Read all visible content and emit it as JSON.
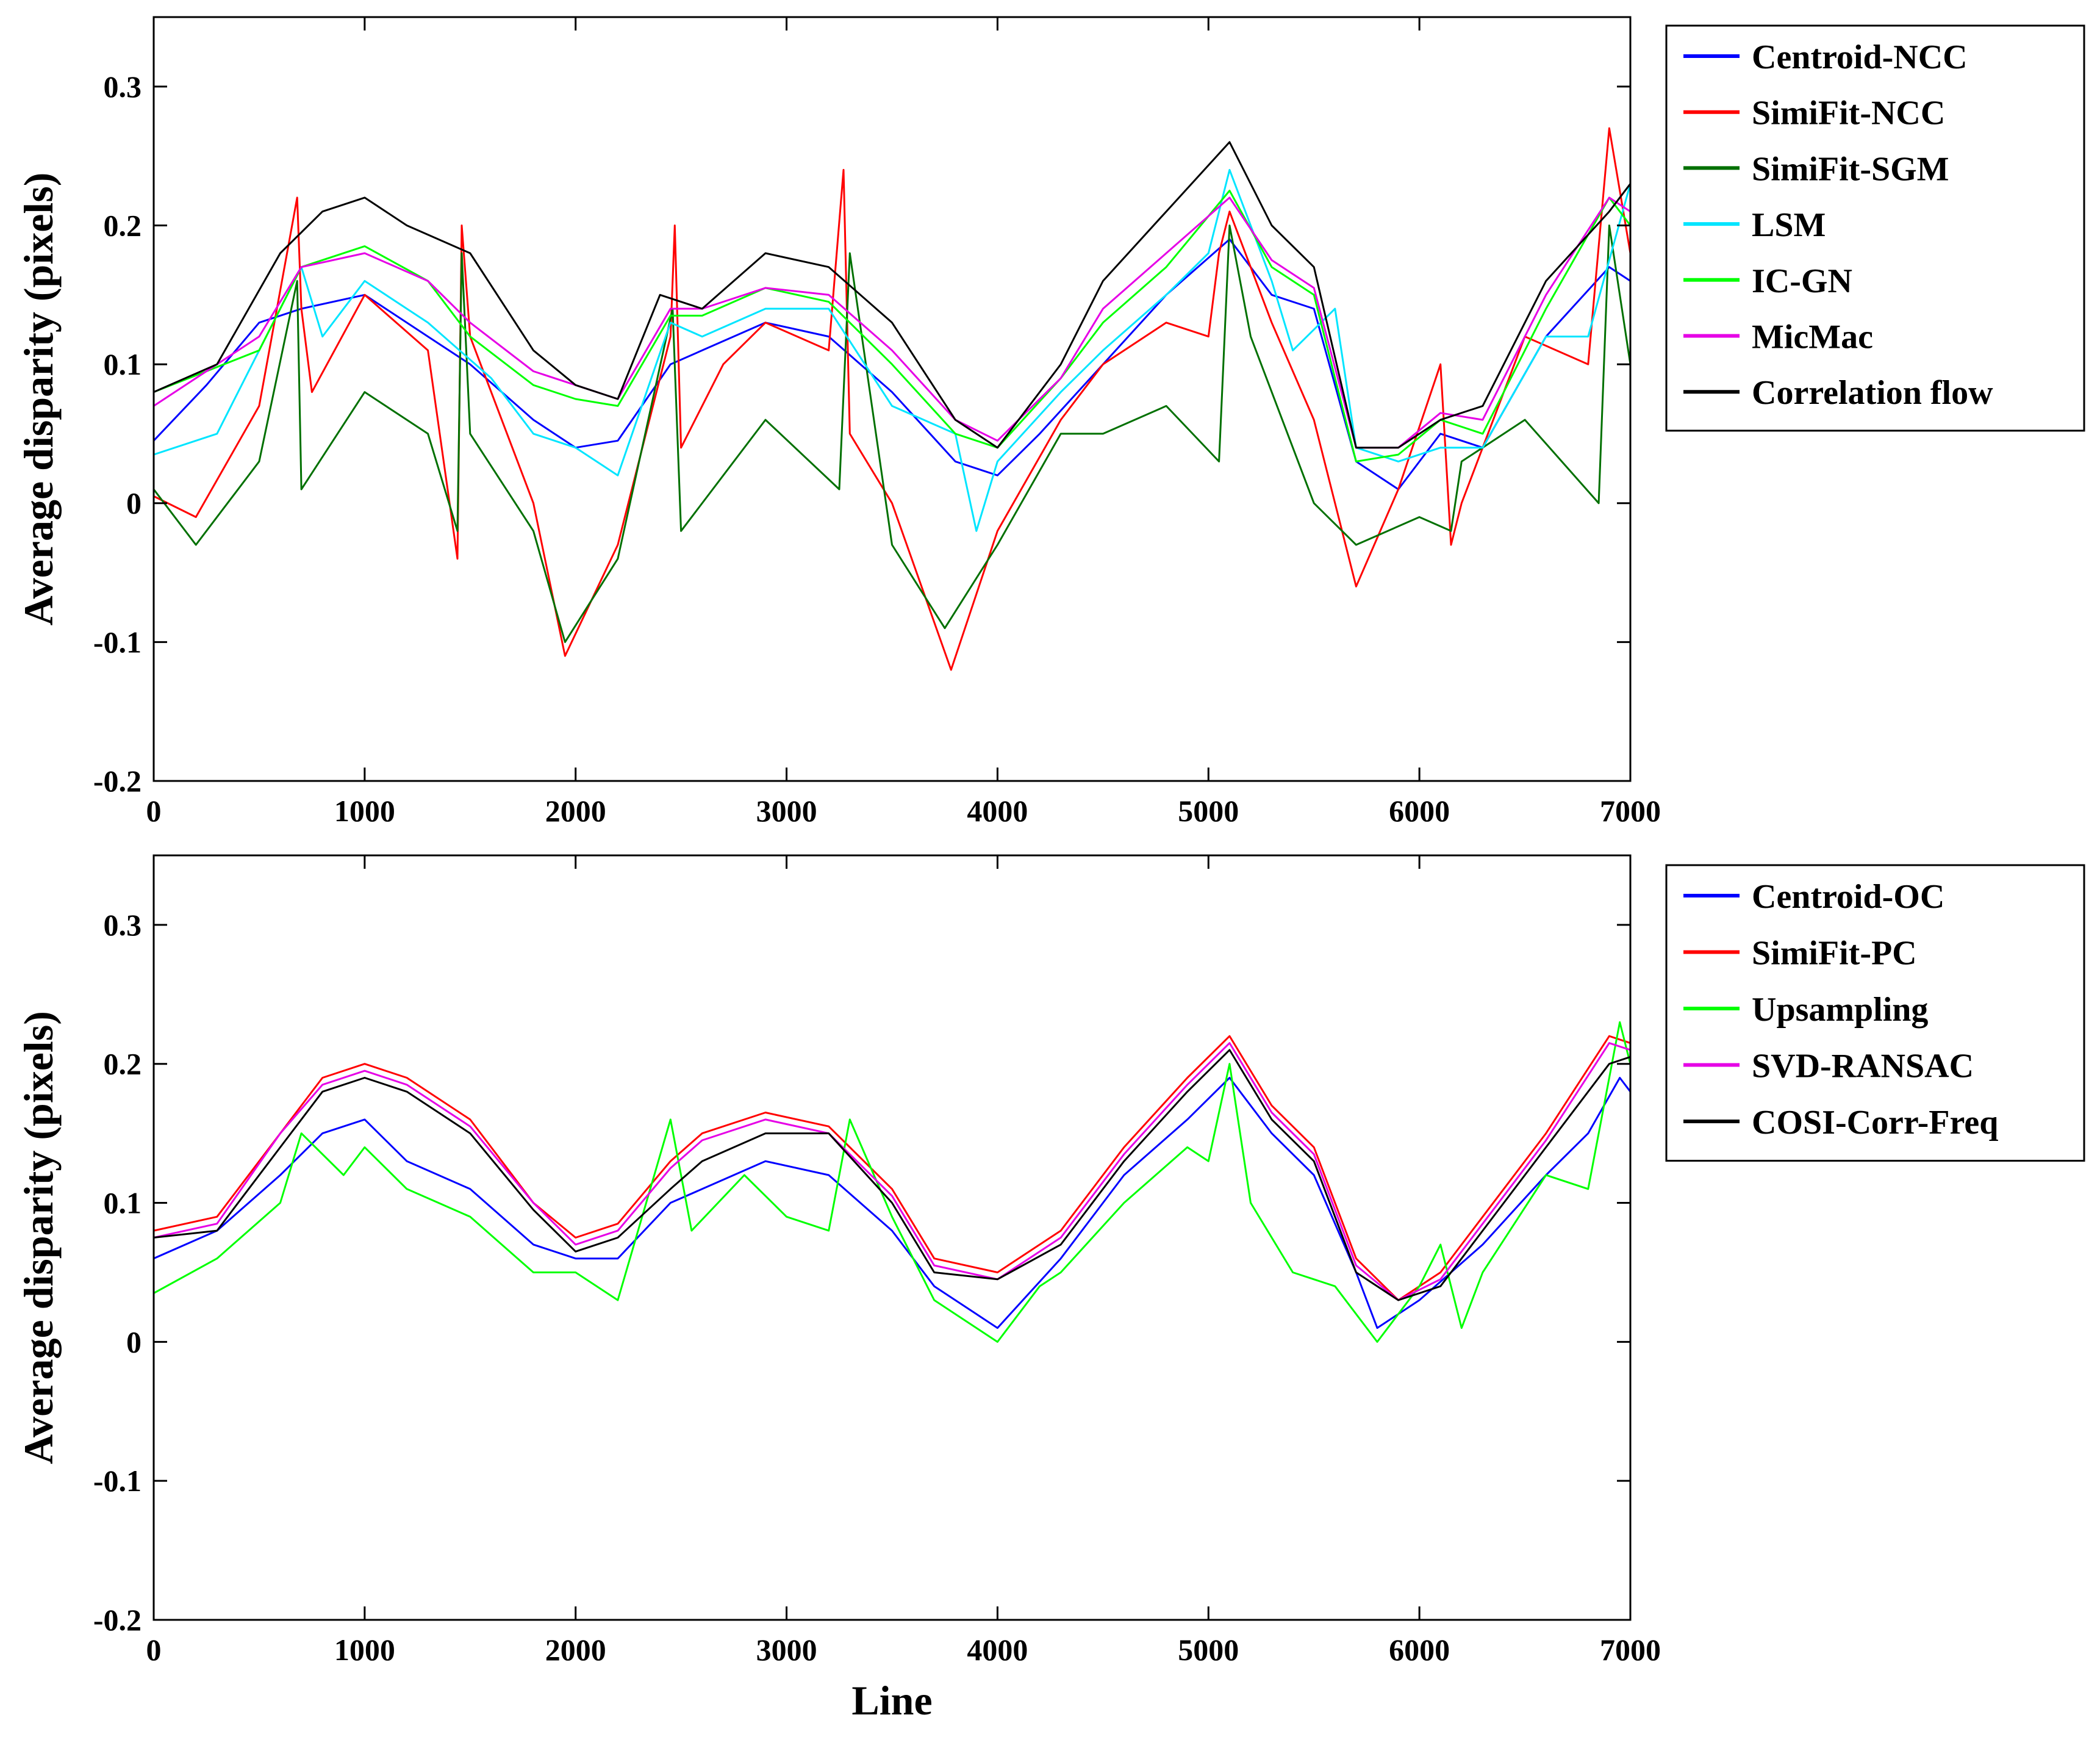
{
  "chart_data": [
    {
      "type": "line",
      "title": "",
      "xlabel": "",
      "ylabel": "Average disparity (pixels)",
      "xlim": [
        0,
        7000
      ],
      "ylim": [
        -0.2,
        0.35
      ],
      "xticks": [
        0,
        1000,
        2000,
        3000,
        4000,
        5000,
        6000,
        7000
      ],
      "yticks": [
        -0.2,
        -0.1,
        0,
        0.1,
        0.2,
        0.3
      ],
      "xtick_labels": [
        "0",
        "1000",
        "2000",
        "3000",
        "4000",
        "5000",
        "6000",
        "7000"
      ],
      "ytick_labels": [
        "-0.2",
        "-0.1",
        "0",
        "0.1",
        "0.2",
        "0.3"
      ],
      "legend_position": "outside-top-right",
      "series": [
        {
          "name": "Centroid-NCC",
          "color": "#0000ff",
          "x": [
            0,
            250,
            500,
            700,
            1000,
            1300,
            1500,
            1800,
            2000,
            2200,
            2450,
            2600,
            2900,
            3200,
            3500,
            3800,
            4000,
            4200,
            4500,
            4800,
            5100,
            5300,
            5500,
            5700,
            5900,
            6100,
            6300,
            6600,
            6900,
            7000
          ],
          "y": [
            0.045,
            0.085,
            0.13,
            0.14,
            0.15,
            0.12,
            0.1,
            0.06,
            0.04,
            0.045,
            0.1,
            0.11,
            0.13,
            0.12,
            0.08,
            0.03,
            0.02,
            0.05,
            0.1,
            0.15,
            0.19,
            0.15,
            0.14,
            0.03,
            0.01,
            0.05,
            0.04,
            0.12,
            0.17,
            0.16
          ]
        },
        {
          "name": "SimiFit-NCC",
          "color": "#ff0000",
          "x": [
            0,
            200,
            500,
            680,
            700,
            750,
            1000,
            1300,
            1440,
            1460,
            1500,
            1800,
            1950,
            2200,
            2450,
            2470,
            2500,
            2700,
            2900,
            3200,
            3270,
            3300,
            3500,
            3780,
            4000,
            4300,
            4500,
            4800,
            5000,
            5050,
            5100,
            5300,
            5500,
            5700,
            5900,
            6100,
            6150,
            6200,
            6500,
            6800,
            6900,
            7000
          ],
          "y": [
            0.005,
            -0.01,
            0.07,
            0.22,
            0.14,
            0.08,
            0.15,
            0.11,
            -0.04,
            0.2,
            0.12,
            0.0,
            -0.11,
            -0.03,
            0.12,
            0.2,
            0.04,
            0.1,
            0.13,
            0.11,
            0.24,
            0.05,
            0.0,
            -0.12,
            -0.02,
            0.06,
            0.1,
            0.13,
            0.12,
            0.18,
            0.21,
            0.13,
            0.06,
            -0.06,
            0.01,
            0.1,
            -0.03,
            0.0,
            0.12,
            0.1,
            0.27,
            0.18
          ]
        },
        {
          "name": "SimiFit-SGM",
          "color": "#007000",
          "x": [
            0,
            200,
            500,
            680,
            700,
            1000,
            1300,
            1440,
            1460,
            1500,
            1800,
            1950,
            2200,
            2460,
            2500,
            2900,
            3250,
            3300,
            3500,
            3750,
            4000,
            4300,
            4500,
            4800,
            5050,
            5100,
            5200,
            5500,
            5700,
            6000,
            6150,
            6200,
            6500,
            6850,
            6900,
            7000
          ],
          "y": [
            0.01,
            -0.03,
            0.03,
            0.16,
            0.01,
            0.08,
            0.05,
            -0.02,
            0.18,
            0.05,
            -0.02,
            -0.1,
            -0.04,
            0.14,
            -0.02,
            0.06,
            0.01,
            0.18,
            -0.03,
            -0.09,
            -0.03,
            0.05,
            0.05,
            0.07,
            0.03,
            0.2,
            0.12,
            0.0,
            -0.03,
            -0.01,
            -0.02,
            0.03,
            0.06,
            0.0,
            0.2,
            0.1
          ]
        },
        {
          "name": "LSM",
          "color": "#00e5ff",
          "x": [
            0,
            300,
            600,
            700,
            800,
            1000,
            1300,
            1600,
            1800,
            2000,
            2200,
            2450,
            2600,
            2900,
            3200,
            3500,
            3800,
            3900,
            4000,
            4300,
            4500,
            4800,
            5000,
            5100,
            5300,
            5400,
            5600,
            5700,
            5900,
            6100,
            6300,
            6600,
            6800,
            7000
          ],
          "y": [
            0.035,
            0.05,
            0.14,
            0.17,
            0.12,
            0.16,
            0.13,
            0.09,
            0.05,
            0.04,
            0.02,
            0.13,
            0.12,
            0.14,
            0.14,
            0.07,
            0.05,
            -0.02,
            0.03,
            0.08,
            0.11,
            0.15,
            0.18,
            0.24,
            0.16,
            0.11,
            0.14,
            0.04,
            0.03,
            0.04,
            0.04,
            0.12,
            0.12,
            0.23
          ]
        },
        {
          "name": "IC-GN",
          "color": "#00ff00",
          "x": [
            0,
            500,
            700,
            1000,
            1300,
            1500,
            1800,
            2000,
            2200,
            2450,
            2600,
            2900,
            3200,
            3500,
            3800,
            4000,
            4300,
            4500,
            4800,
            5100,
            5300,
            5500,
            5700,
            5900,
            6100,
            6300,
            6600,
            6900,
            7000
          ],
          "y": [
            0.08,
            0.11,
            0.17,
            0.185,
            0.16,
            0.12,
            0.085,
            0.075,
            0.07,
            0.135,
            0.135,
            0.155,
            0.145,
            0.1,
            0.05,
            0.04,
            0.09,
            0.13,
            0.17,
            0.225,
            0.17,
            0.15,
            0.03,
            0.035,
            0.06,
            0.05,
            0.14,
            0.22,
            0.2
          ]
        },
        {
          "name": "MicMac",
          "color": "#e600e6",
          "x": [
            0,
            500,
            700,
            1000,
            1300,
            1500,
            1800,
            2000,
            2200,
            2450,
            2600,
            2900,
            3200,
            3500,
            3800,
            4000,
            4300,
            4500,
            4800,
            5100,
            5300,
            5500,
            5700,
            5900,
            6100,
            6300,
            6600,
            6900,
            7000
          ],
          "y": [
            0.07,
            0.12,
            0.17,
            0.18,
            0.16,
            0.13,
            0.095,
            0.085,
            0.075,
            0.14,
            0.14,
            0.155,
            0.15,
            0.11,
            0.06,
            0.045,
            0.09,
            0.14,
            0.18,
            0.22,
            0.175,
            0.155,
            0.04,
            0.04,
            0.065,
            0.06,
            0.15,
            0.22,
            0.21
          ]
        },
        {
          "name": "Correlation flow",
          "color": "#000000",
          "x": [
            0,
            300,
            600,
            800,
            1000,
            1200,
            1500,
            1800,
            2000,
            2200,
            2400,
            2600,
            2900,
            3200,
            3500,
            3800,
            4000,
            4300,
            4500,
            4800,
            5100,
            5300,
            5500,
            5700,
            5900,
            6100,
            6300,
            6600,
            6900,
            7000
          ],
          "y": [
            0.08,
            0.1,
            0.18,
            0.21,
            0.22,
            0.2,
            0.18,
            0.11,
            0.085,
            0.075,
            0.15,
            0.14,
            0.18,
            0.17,
            0.13,
            0.06,
            0.04,
            0.1,
            0.16,
            0.21,
            0.26,
            0.2,
            0.17,
            0.04,
            0.04,
            0.06,
            0.07,
            0.16,
            0.21,
            0.23
          ]
        }
      ]
    },
    {
      "type": "line",
      "title": "",
      "xlabel": "Line",
      "ylabel": "Average disparity (pixels)",
      "xlim": [
        0,
        7000
      ],
      "ylim": [
        -0.2,
        0.35
      ],
      "xticks": [
        0,
        1000,
        2000,
        3000,
        4000,
        5000,
        6000,
        7000
      ],
      "yticks": [
        -0.2,
        -0.1,
        0,
        0.1,
        0.2,
        0.3
      ],
      "xtick_labels": [
        "0",
        "1000",
        "2000",
        "3000",
        "4000",
        "5000",
        "6000",
        "7000"
      ],
      "ytick_labels": [
        "-0.2",
        "-0.1",
        "0",
        "0.1",
        "0.2",
        "0.3"
      ],
      "legend_position": "outside-top-right",
      "series": [
        {
          "name": "Centroid-OC",
          "color": "#0000ff",
          "x": [
            0,
            300,
            600,
            800,
            1000,
            1200,
            1500,
            1800,
            2000,
            2200,
            2450,
            2600,
            2900,
            3200,
            3500,
            3700,
            3900,
            4000,
            4300,
            4600,
            4900,
            5100,
            5300,
            5500,
            5700,
            5800,
            6000,
            6300,
            6600,
            6800,
            6950,
            7000
          ],
          "y": [
            0.06,
            0.08,
            0.12,
            0.15,
            0.16,
            0.13,
            0.11,
            0.07,
            0.06,
            0.06,
            0.1,
            0.11,
            0.13,
            0.12,
            0.08,
            0.04,
            0.02,
            0.01,
            0.06,
            0.12,
            0.16,
            0.19,
            0.15,
            0.12,
            0.05,
            0.01,
            0.03,
            0.07,
            0.12,
            0.15,
            0.19,
            0.18
          ]
        },
        {
          "name": "SimiFit-PC",
          "color": "#ff0000",
          "x": [
            0,
            300,
            600,
            800,
            1000,
            1200,
            1500,
            1800,
            2000,
            2200,
            2450,
            2600,
            2900,
            3200,
            3500,
            3700,
            4000,
            4300,
            4600,
            4900,
            5100,
            5300,
            5500,
            5700,
            5900,
            6100,
            6300,
            6600,
            6900,
            7000
          ],
          "y": [
            0.08,
            0.09,
            0.15,
            0.19,
            0.2,
            0.19,
            0.16,
            0.1,
            0.075,
            0.085,
            0.13,
            0.15,
            0.165,
            0.155,
            0.11,
            0.06,
            0.05,
            0.08,
            0.14,
            0.19,
            0.22,
            0.17,
            0.14,
            0.06,
            0.03,
            0.05,
            0.09,
            0.15,
            0.22,
            0.215
          ]
        },
        {
          "name": "Upsampling",
          "color": "#00ff00",
          "x": [
            0,
            300,
            600,
            700,
            900,
            1000,
            1200,
            1350,
            1500,
            1800,
            2000,
            2200,
            2450,
            2550,
            2800,
            3000,
            3200,
            3300,
            3500,
            3700,
            4000,
            4200,
            4300,
            4600,
            4900,
            5000,
            5100,
            5200,
            5400,
            5600,
            5800,
            6000,
            6100,
            6200,
            6300,
            6600,
            6800,
            6950,
            7000
          ],
          "y": [
            0.035,
            0.06,
            0.1,
            0.15,
            0.12,
            0.14,
            0.11,
            0.1,
            0.09,
            0.05,
            0.05,
            0.03,
            0.16,
            0.08,
            0.12,
            0.09,
            0.08,
            0.16,
            0.09,
            0.03,
            0.0,
            0.04,
            0.05,
            0.1,
            0.14,
            0.13,
            0.2,
            0.1,
            0.05,
            0.04,
            0.0,
            0.04,
            0.07,
            0.01,
            0.05,
            0.12,
            0.11,
            0.23,
            0.2
          ]
        },
        {
          "name": "SVD-RANSAC",
          "color": "#e600e6",
          "x": [
            0,
            300,
            600,
            800,
            1000,
            1200,
            1500,
            1800,
            2000,
            2200,
            2450,
            2600,
            2900,
            3200,
            3500,
            3700,
            4000,
            4300,
            4600,
            4900,
            5100,
            5300,
            5500,
            5700,
            5900,
            6100,
            6300,
            6600,
            6900,
            7000
          ],
          "y": [
            0.075,
            0.085,
            0.15,
            0.185,
            0.195,
            0.185,
            0.155,
            0.1,
            0.07,
            0.08,
            0.125,
            0.145,
            0.16,
            0.15,
            0.105,
            0.055,
            0.045,
            0.075,
            0.135,
            0.185,
            0.215,
            0.165,
            0.135,
            0.055,
            0.03,
            0.045,
            0.085,
            0.145,
            0.215,
            0.21
          ]
        },
        {
          "name": "COSI-Corr-Freq",
          "color": "#000000",
          "x": [
            0,
            300,
            600,
            800,
            1000,
            1200,
            1500,
            1800,
            2000,
            2200,
            2450,
            2600,
            2900,
            3200,
            3500,
            3700,
            4000,
            4300,
            4600,
            4900,
            5100,
            5300,
            5500,
            5700,
            5900,
            6100,
            6300,
            6600,
            6900,
            7000
          ],
          "y": [
            0.075,
            0.08,
            0.14,
            0.18,
            0.19,
            0.18,
            0.15,
            0.095,
            0.065,
            0.075,
            0.11,
            0.13,
            0.15,
            0.15,
            0.1,
            0.05,
            0.045,
            0.07,
            0.13,
            0.18,
            0.21,
            0.16,
            0.13,
            0.05,
            0.03,
            0.04,
            0.08,
            0.14,
            0.2,
            0.205
          ]
        }
      ]
    }
  ]
}
